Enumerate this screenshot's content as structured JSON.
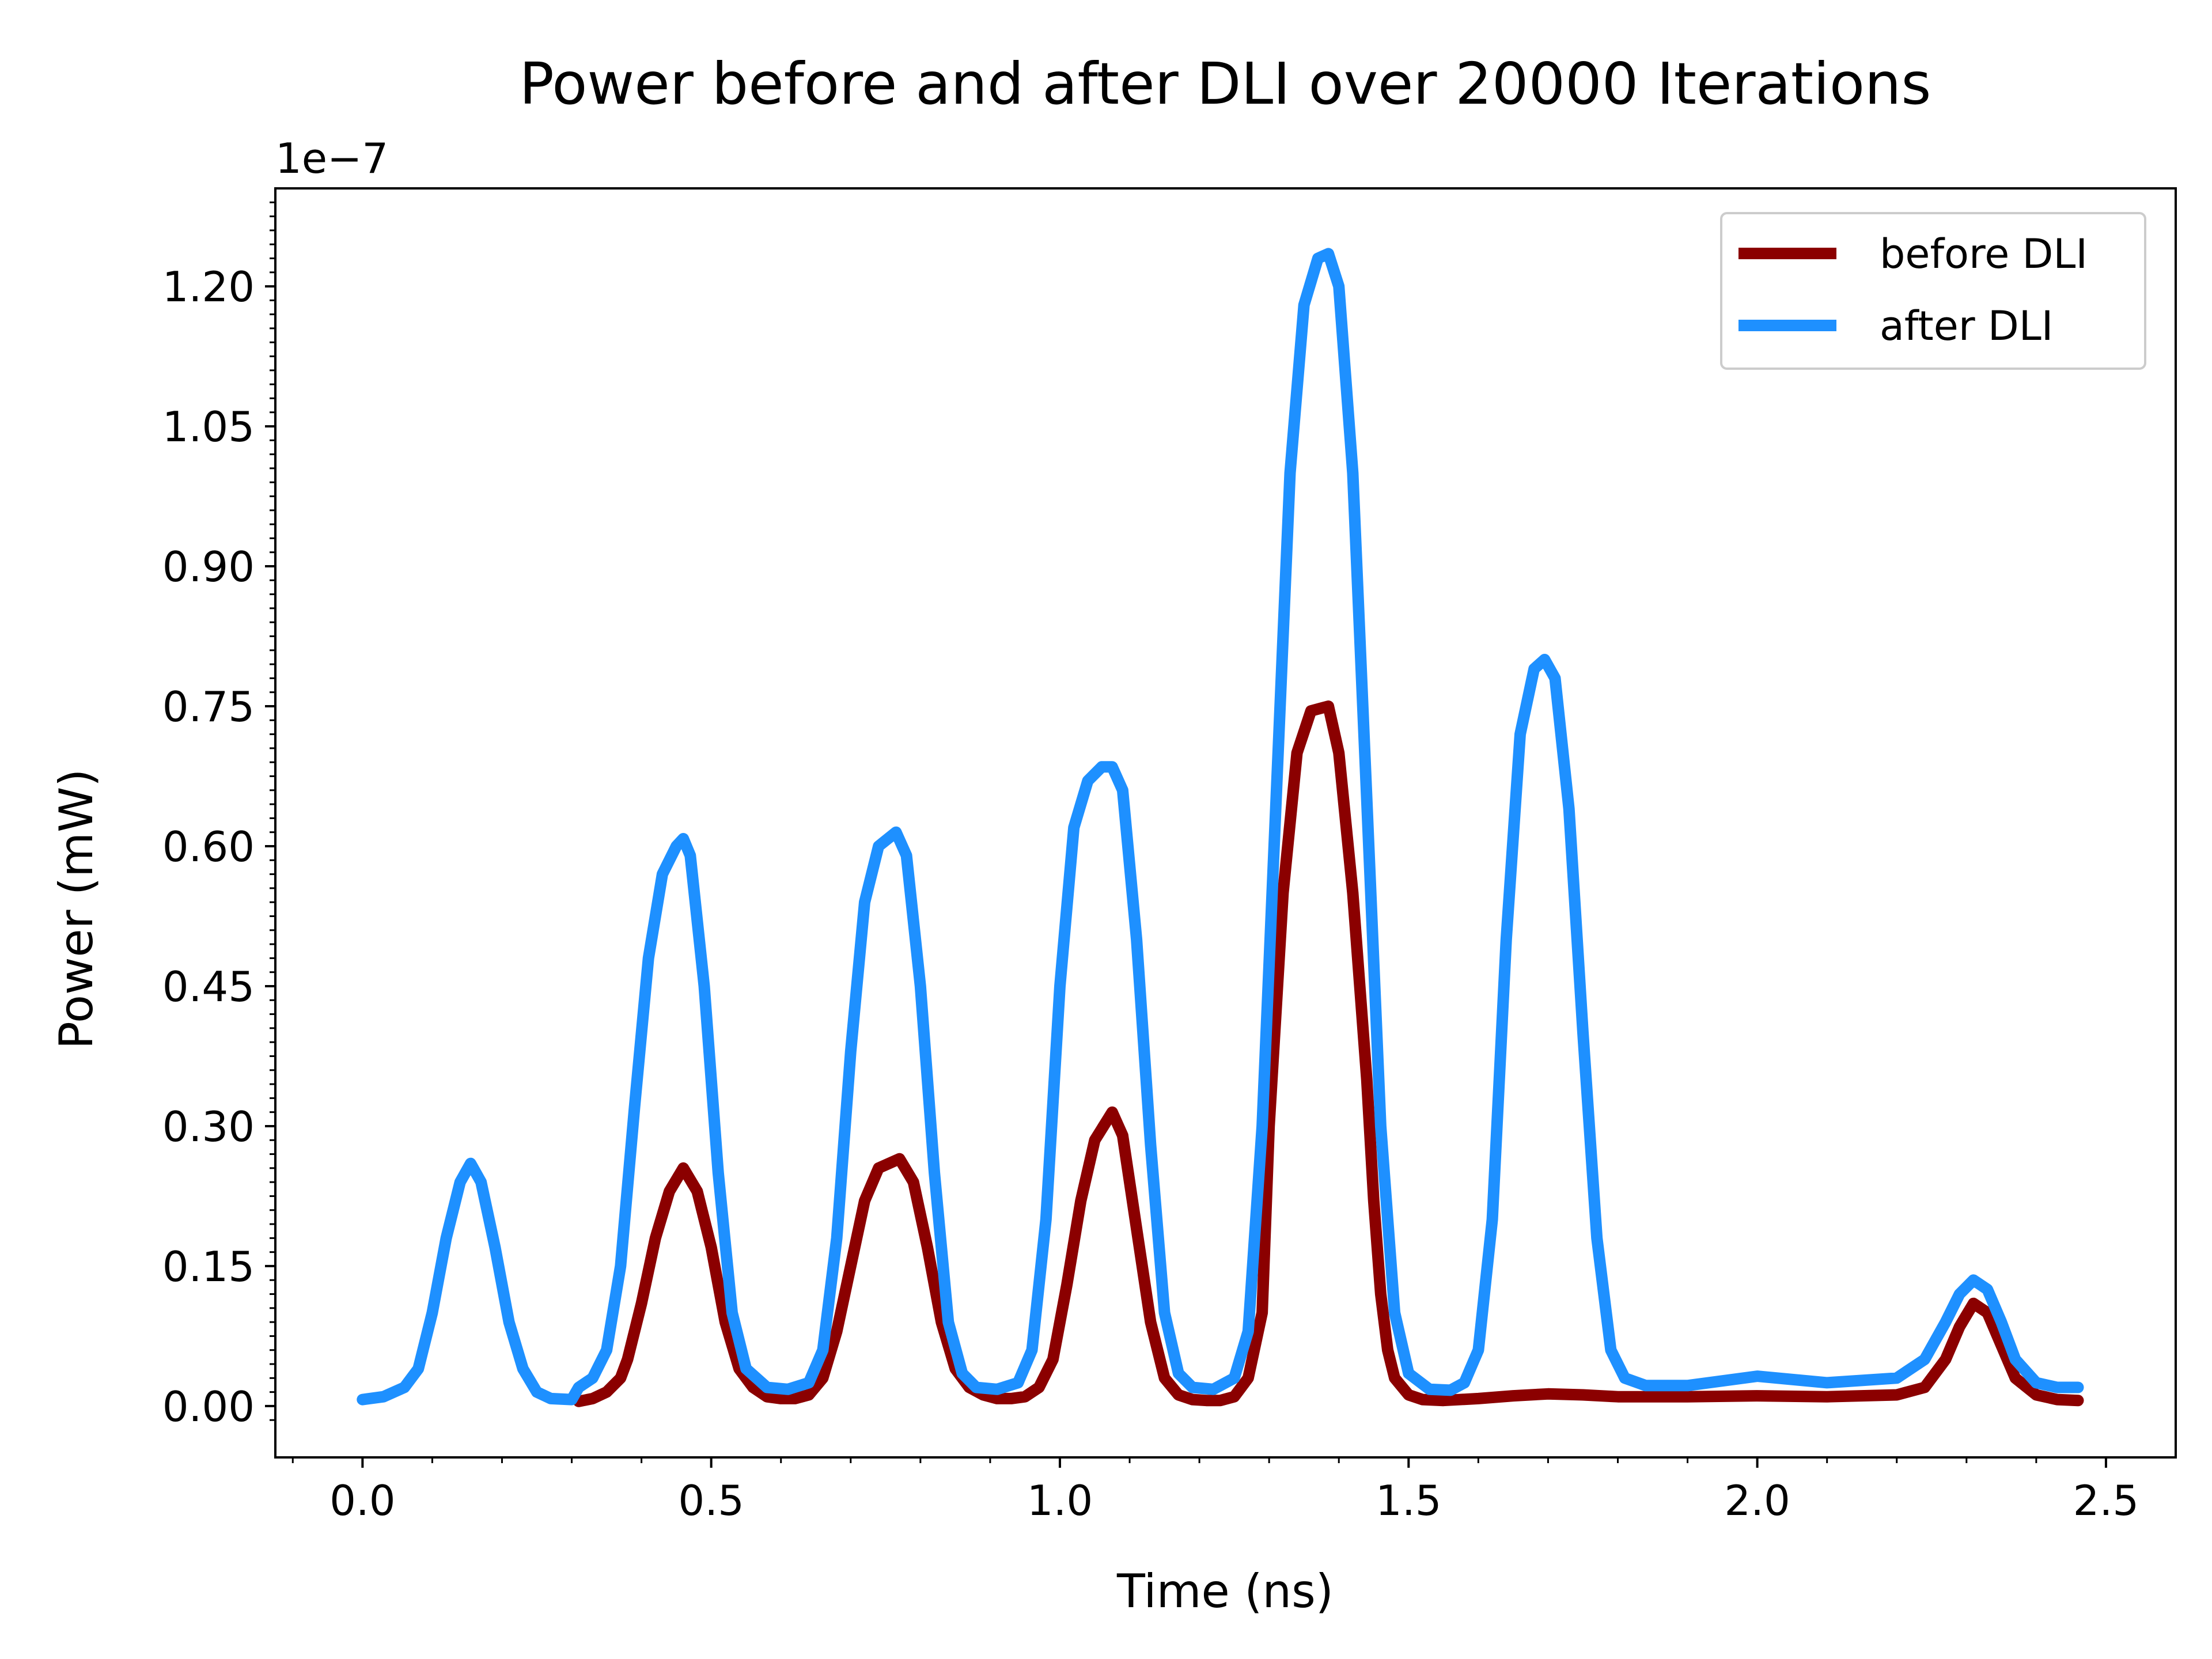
{
  "chart_data": {
    "type": "line",
    "title": "Power before and after DLI over 20000 Iterations",
    "xlabel": "Time (ns)",
    "ylabel": "Power (mW)",
    "y_offset_label": "1e−7",
    "xlim": [
      -0.125,
      2.6
    ],
    "ylim": [
      -0.055,
      1.305
    ],
    "x_ticks": [
      0.0,
      0.5,
      1.0,
      1.5,
      2.0,
      2.5
    ],
    "x_tick_labels": [
      "0.0",
      "0.5",
      "1.0",
      "1.5",
      "2.0",
      "2.5"
    ],
    "y_ticks": [
      0.0,
      0.15,
      0.3,
      0.45,
      0.6,
      0.75,
      0.9,
      1.05,
      1.2
    ],
    "y_tick_labels": [
      "0.00",
      "0.15",
      "0.30",
      "0.45",
      "0.60",
      "0.75",
      "0.90",
      "1.05",
      "1.20"
    ],
    "grid": false,
    "legend_position": "top-right",
    "series": [
      {
        "name": "before DLI",
        "color": "#8b0000",
        "x": [
          0.31,
          0.33,
          0.35,
          0.37,
          0.38,
          0.4,
          0.42,
          0.44,
          0.46,
          0.48,
          0.5,
          0.52,
          0.54,
          0.56,
          0.58,
          0.6,
          0.62,
          0.64,
          0.66,
          0.68,
          0.7,
          0.72,
          0.74,
          0.77,
          0.79,
          0.81,
          0.83,
          0.85,
          0.87,
          0.89,
          0.91,
          0.93,
          0.95,
          0.97,
          0.99,
          1.01,
          1.03,
          1.05,
          1.075,
          1.09,
          1.11,
          1.13,
          1.15,
          1.17,
          1.19,
          1.21,
          1.23,
          1.25,
          1.27,
          1.29,
          1.3,
          1.32,
          1.34,
          1.36,
          1.385,
          1.4,
          1.42,
          1.44,
          1.45,
          1.46,
          1.47,
          1.48,
          1.5,
          1.52,
          1.55,
          1.6,
          1.65,
          1.7,
          1.75,
          1.8,
          1.9,
          2.0,
          2.1,
          2.2,
          2.24,
          2.27,
          2.29,
          2.31,
          2.33,
          2.35,
          2.37,
          2.4,
          2.43,
          2.46
        ],
        "y": [
          0.005,
          0.008,
          0.015,
          0.03,
          0.05,
          0.11,
          0.18,
          0.23,
          0.255,
          0.23,
          0.17,
          0.09,
          0.04,
          0.02,
          0.01,
          0.008,
          0.008,
          0.012,
          0.03,
          0.08,
          0.15,
          0.22,
          0.255,
          0.265,
          0.24,
          0.17,
          0.09,
          0.04,
          0.02,
          0.012,
          0.008,
          0.008,
          0.01,
          0.02,
          0.05,
          0.13,
          0.22,
          0.285,
          0.315,
          0.29,
          0.19,
          0.09,
          0.03,
          0.012,
          0.007,
          0.006,
          0.006,
          0.01,
          0.03,
          0.1,
          0.3,
          0.55,
          0.7,
          0.745,
          0.75,
          0.7,
          0.55,
          0.35,
          0.22,
          0.12,
          0.06,
          0.03,
          0.012,
          0.007,
          0.006,
          0.008,
          0.011,
          0.013,
          0.012,
          0.01,
          0.01,
          0.011,
          0.01,
          0.012,
          0.02,
          0.05,
          0.085,
          0.11,
          0.1,
          0.065,
          0.03,
          0.012,
          0.007,
          0.006
        ]
      },
      {
        "name": "after DLI",
        "color": "#1e90ff",
        "x": [
          0.0,
          0.03,
          0.06,
          0.08,
          0.1,
          0.12,
          0.14,
          0.155,
          0.17,
          0.19,
          0.21,
          0.23,
          0.25,
          0.27,
          0.3,
          0.31,
          0.33,
          0.35,
          0.37,
          0.39,
          0.41,
          0.43,
          0.45,
          0.46,
          0.47,
          0.49,
          0.51,
          0.53,
          0.55,
          0.58,
          0.61,
          0.64,
          0.66,
          0.68,
          0.7,
          0.72,
          0.74,
          0.765,
          0.78,
          0.8,
          0.82,
          0.84,
          0.86,
          0.88,
          0.91,
          0.94,
          0.96,
          0.98,
          1.0,
          1.02,
          1.04,
          1.06,
          1.075,
          1.09,
          1.11,
          1.13,
          1.15,
          1.17,
          1.19,
          1.22,
          1.25,
          1.27,
          1.29,
          1.31,
          1.33,
          1.35,
          1.37,
          1.385,
          1.4,
          1.42,
          1.44,
          1.46,
          1.48,
          1.5,
          1.53,
          1.56,
          1.58,
          1.6,
          1.62,
          1.64,
          1.66,
          1.68,
          1.695,
          1.71,
          1.73,
          1.75,
          1.77,
          1.79,
          1.81,
          1.84,
          1.9,
          2.0,
          2.1,
          2.2,
          2.24,
          2.27,
          2.29,
          2.31,
          2.33,
          2.35,
          2.37,
          2.4,
          2.43,
          2.46
        ],
        "y": [
          0.007,
          0.01,
          0.02,
          0.04,
          0.1,
          0.18,
          0.24,
          0.26,
          0.24,
          0.17,
          0.09,
          0.04,
          0.015,
          0.008,
          0.007,
          0.02,
          0.03,
          0.06,
          0.15,
          0.32,
          0.48,
          0.57,
          0.6,
          0.608,
          0.59,
          0.45,
          0.25,
          0.1,
          0.04,
          0.02,
          0.018,
          0.025,
          0.06,
          0.18,
          0.38,
          0.54,
          0.6,
          0.615,
          0.59,
          0.45,
          0.25,
          0.09,
          0.035,
          0.02,
          0.018,
          0.025,
          0.06,
          0.2,
          0.45,
          0.62,
          0.67,
          0.685,
          0.685,
          0.66,
          0.5,
          0.28,
          0.1,
          0.035,
          0.02,
          0.018,
          0.03,
          0.08,
          0.3,
          0.65,
          1.0,
          1.18,
          1.23,
          1.235,
          1.2,
          1.0,
          0.65,
          0.3,
          0.1,
          0.035,
          0.018,
          0.017,
          0.025,
          0.06,
          0.2,
          0.5,
          0.72,
          0.79,
          0.8,
          0.78,
          0.64,
          0.4,
          0.18,
          0.06,
          0.03,
          0.022,
          0.022,
          0.032,
          0.025,
          0.03,
          0.05,
          0.09,
          0.12,
          0.135,
          0.125,
          0.09,
          0.05,
          0.025,
          0.02,
          0.02
        ]
      }
    ]
  }
}
